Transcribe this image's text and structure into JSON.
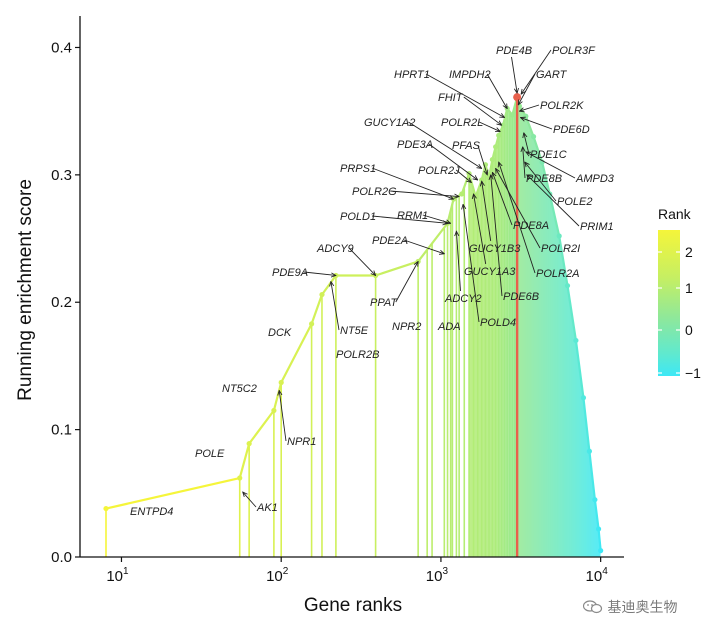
{
  "chart_data": {
    "type": "line",
    "xlabel": "Gene ranks",
    "ylabel": "Running enrichment score",
    "xscale": "log",
    "xlim": [
      5.5,
      14000
    ],
    "ylim": [
      0,
      0.42
    ],
    "xticks": [
      {
        "value": 10,
        "base": "10",
        "exp": "1"
      },
      {
        "value": 100,
        "base": "10",
        "exp": "2"
      },
      {
        "value": 1000,
        "base": "10",
        "exp": "3"
      },
      {
        "value": 10000,
        "base": "10",
        "exp": "4"
      }
    ],
    "yticks": [
      "0.0",
      "0.1",
      "0.2",
      "0.3",
      "0.4"
    ],
    "peak": {
      "x": 3000,
      "y": 0.361,
      "color": "#e8604c"
    },
    "legend": {
      "title": "Rank",
      "ticks": [
        "2",
        "1",
        "0",
        "−1"
      ],
      "placement": "right",
      "colors": [
        "#f5f53a",
        "#c5ef63",
        "#8fe89a",
        "#5fe9cf",
        "#3de8f6"
      ]
    },
    "points": [
      [
        8,
        0.038
      ],
      [
        55,
        0.062
      ],
      [
        63,
        0.089
      ],
      [
        90,
        0.115
      ],
      [
        100,
        0.137
      ],
      [
        155,
        0.183
      ],
      [
        180,
        0.206
      ],
      [
        220,
        0.221
      ],
      [
        390,
        0.221
      ],
      [
        720,
        0.232
      ],
      [
        1100,
        0.262
      ],
      [
        1200,
        0.281
      ],
      [
        1350,
        0.285
      ],
      [
        1500,
        0.301
      ],
      [
        1650,
        0.283
      ],
      [
        1800,
        0.296
      ],
      [
        1900,
        0.308
      ],
      [
        2000,
        0.298
      ],
      [
        2100,
        0.312
      ],
      [
        2200,
        0.322
      ],
      [
        2300,
        0.331
      ],
      [
        2450,
        0.339
      ],
      [
        2600,
        0.352
      ],
      [
        2800,
        0.347
      ],
      [
        3000,
        0.361
      ],
      [
        3100,
        0.354
      ],
      [
        3400,
        0.346
      ],
      [
        3800,
        0.33
      ],
      [
        4300,
        0.31
      ],
      [
        4800,
        0.285
      ],
      [
        5500,
        0.252
      ],
      [
        6200,
        0.213
      ],
      [
        7000,
        0.17
      ],
      [
        7800,
        0.125
      ],
      [
        8500,
        0.083
      ],
      [
        9200,
        0.045
      ],
      [
        9700,
        0.022
      ],
      [
        10000,
        0.005
      ]
    ],
    "genes": [
      {
        "name": "ENTPD4",
        "x": 8
      },
      {
        "name": "AK1",
        "x": 55
      },
      {
        "name": "POLE",
        "x": 63
      },
      {
        "name": "NPR1",
        "x": 100
      },
      {
        "name": "NT5C2",
        "x": 90
      },
      {
        "name": "DCK",
        "x": 155
      },
      {
        "name": "POLR2B",
        "x": 180
      },
      {
        "name": "NT5E",
        "x": 220
      },
      {
        "name": "PDE9A",
        "x": 220
      },
      {
        "name": "ADCY9",
        "x": 390
      },
      {
        "name": "PPAT",
        "x": 720
      },
      {
        "name": "NPR2",
        "x": 880
      },
      {
        "name": "ADA",
        "x": 1050
      },
      {
        "name": "PDE2A",
        "x": 1100
      },
      {
        "name": "RRM1",
        "x": 1180
      },
      {
        "name": "POLD1",
        "x": 1150
      },
      {
        "name": "ADCY2",
        "x": 1300
      },
      {
        "name": "POLD4",
        "x": 1500
      },
      {
        "name": "GUCY1A3",
        "x": 1700
      },
      {
        "name": "GUCY1B3",
        "x": 1950
      },
      {
        "name": "PDE6B",
        "x": 2100
      },
      {
        "name": "PDE8A",
        "x": 2250
      },
      {
        "name": "POLR2I",
        "x": 2300
      },
      {
        "name": "POLR2A",
        "x": 2400
      },
      {
        "name": "PRPS1",
        "x": 1400
      },
      {
        "name": "POLR2G",
        "x": 1600
      },
      {
        "name": "POLR2J",
        "x": 1700
      },
      {
        "name": "PDE3A",
        "x": 1800
      },
      {
        "name": "PFAS",
        "x": 2050
      },
      {
        "name": "GUCY1A2",
        "x": 1900
      },
      {
        "name": "POLR2L",
        "x": 2300
      },
      {
        "name": "FHIT",
        "x": 2400
      },
      {
        "name": "HPRT1",
        "x": 2500
      },
      {
        "name": "IMPDH2",
        "x": 2700
      },
      {
        "name": "PDE4B",
        "x": 3000
      },
      {
        "name": "POLR3F",
        "x": 3050
      },
      {
        "name": "GART",
        "x": 3100
      },
      {
        "name": "POLR2K",
        "x": 3150
      },
      {
        "name": "PDE6D",
        "x": 3200
      },
      {
        "name": "PDE1C",
        "x": 3300
      },
      {
        "name": "PDE8B",
        "x": 3400
      },
      {
        "name": "AMPD3",
        "x": 3500
      },
      {
        "name": "POLE2",
        "x": 3600
      },
      {
        "name": "PRIM1",
        "x": 3800
      }
    ]
  },
  "watermark": {
    "text": "基迪奥生物",
    "icon": "wechat-icon"
  }
}
